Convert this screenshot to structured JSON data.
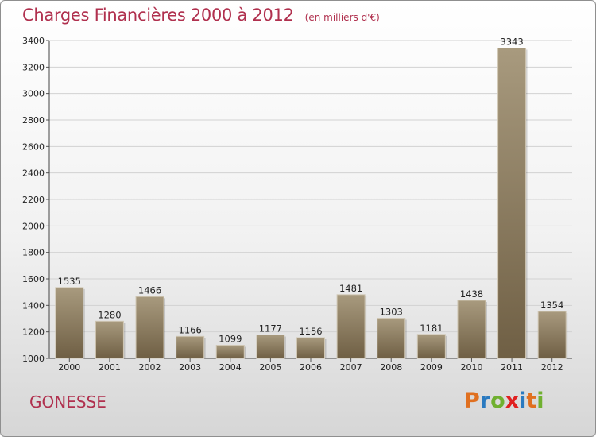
{
  "header": {
    "title": "Charges Financières 2000 à 2012",
    "subtitle": "(en milliers d'€)"
  },
  "footer": {
    "city": "GONESSE",
    "logo_text": "Proxiti"
  },
  "colors": {
    "title": "#b0304e",
    "bar_top": "#a89a7e",
    "bar_bottom": "#6f5f44",
    "logo": [
      "#e07020",
      "#2a7ac0",
      "#70b030",
      "#e02020",
      "#2a7ac0",
      "#e07020",
      "#70b030"
    ]
  },
  "chart_data": {
    "type": "bar",
    "title": "Charges Financières 2000 à 2012",
    "subtitle": "(en milliers d'€)",
    "categories": [
      "2000",
      "2001",
      "2002",
      "2003",
      "2004",
      "2005",
      "2006",
      "2007",
      "2008",
      "2009",
      "2010",
      "2011",
      "2012"
    ],
    "values": [
      1535,
      1280,
      1466,
      1166,
      1099,
      1177,
      1156,
      1481,
      1303,
      1181,
      1438,
      3343,
      1354
    ],
    "ylim": [
      1000,
      3400
    ],
    "yticks": [
      1000,
      1200,
      1400,
      1600,
      1800,
      2000,
      2200,
      2400,
      2600,
      2800,
      3000,
      3200,
      3400
    ],
    "grid": true,
    "xlabel": "",
    "ylabel": ""
  }
}
